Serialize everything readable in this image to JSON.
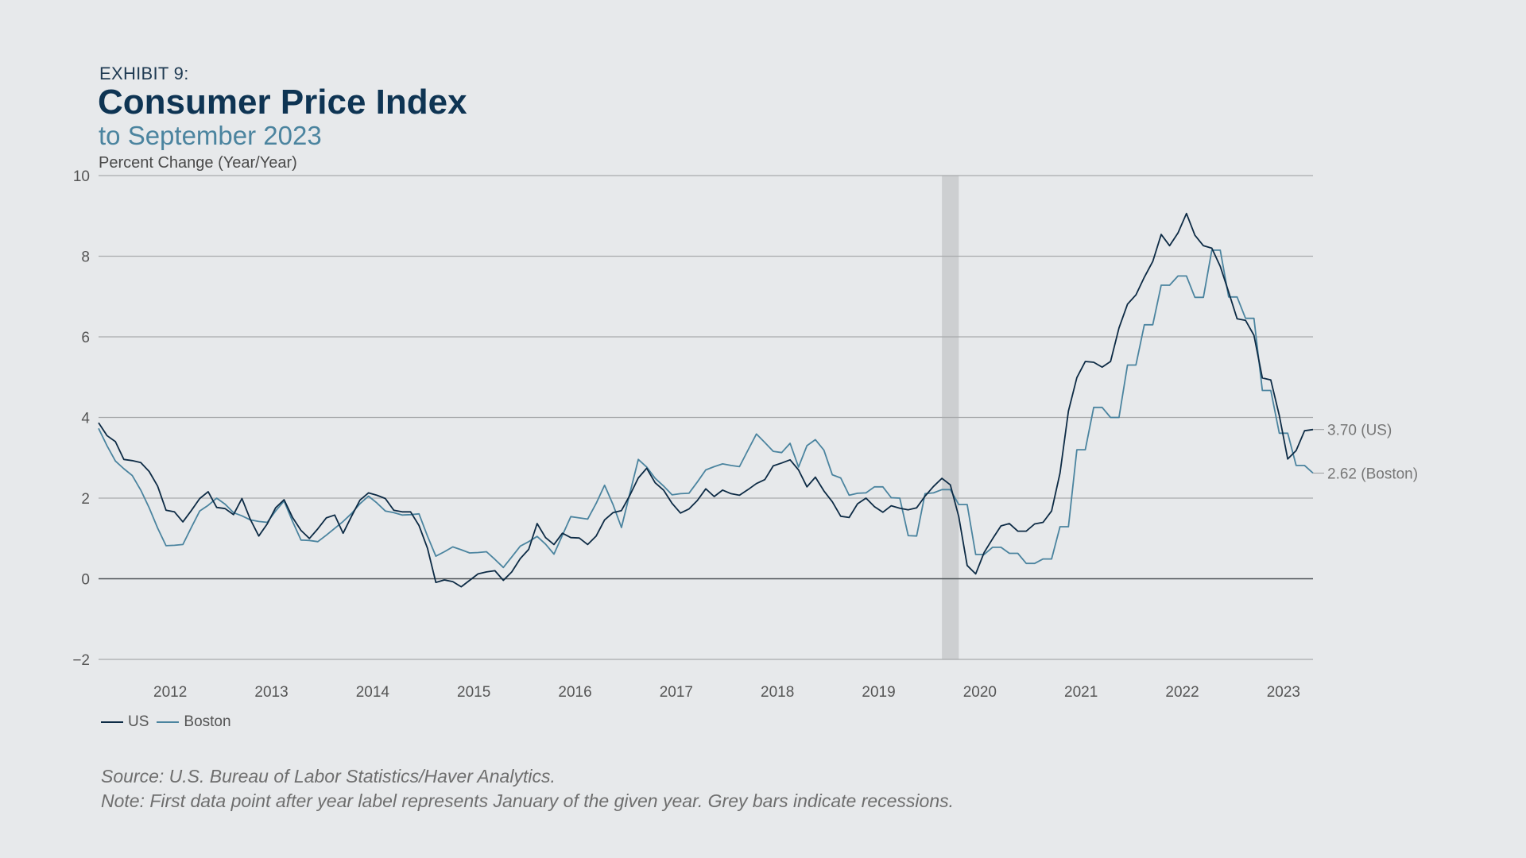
{
  "header": {
    "exhibit": "EXHIBIT 9:",
    "title": "Consumer Price Index",
    "subtitle": "to September 2023"
  },
  "chart_data": {
    "type": "line",
    "ylabel": "Percent Change (Year/Year)",
    "ylim": [
      -2,
      10
    ],
    "yticks": [
      -2,
      0,
      2,
      4,
      6,
      8,
      10
    ],
    "ytick_labels": [
      "−2",
      "0",
      "2",
      "4",
      "6",
      "8",
      "10"
    ],
    "x_axis": "monthly, October 2011 to September 2023",
    "xtick_labels": [
      "2012",
      "2013",
      "2014",
      "2015",
      "2016",
      "2017",
      "2018",
      "2019",
      "2020",
      "2021",
      "2022",
      "2023"
    ],
    "grid": true,
    "legend_position": "bottom-left",
    "recessions": [
      {
        "start": "2020-02",
        "end": "2020-04"
      }
    ],
    "series": [
      {
        "name": "US",
        "color": "#0d2b45",
        "end_label": "3.70 (US)",
        "x_start": "2011-10",
        "frequency": "monthly",
        "values": [
          3.87,
          3.55,
          3.4,
          2.96,
          2.93,
          2.88,
          2.66,
          2.3,
          1.7,
          1.66,
          1.41,
          1.69,
          1.99,
          2.16,
          1.77,
          1.74,
          1.59,
          1.99,
          1.47,
          1.06,
          1.36,
          1.76,
          1.96,
          1.52,
          1.2,
          1.0,
          1.24,
          1.51,
          1.58,
          1.13,
          1.55,
          1.95,
          2.13,
          2.07,
          1.99,
          1.7,
          1.66,
          1.66,
          1.32,
          0.76,
          -0.09,
          -0.03,
          -0.07,
          -0.2,
          -0.04,
          0.12,
          0.17,
          0.2,
          -0.04,
          0.17,
          0.5,
          0.73,
          1.37,
          1.02,
          0.85,
          1.13,
          1.02,
          1.01,
          0.85,
          1.06,
          1.46,
          1.64,
          1.69,
          2.07,
          2.5,
          2.74,
          2.38,
          2.2,
          1.87,
          1.63,
          1.73,
          1.94,
          2.23,
          2.04,
          2.2,
          2.11,
          2.07,
          2.21,
          2.36,
          2.46,
          2.8,
          2.87,
          2.95,
          2.7,
          2.28,
          2.52,
          2.18,
          1.91,
          1.55,
          1.52,
          1.86,
          2.0,
          1.79,
          1.65,
          1.81,
          1.75,
          1.71,
          1.76,
          2.05,
          2.29,
          2.49,
          2.33,
          1.54,
          0.33,
          0.12,
          0.65,
          0.99,
          1.31,
          1.37,
          1.18,
          1.18,
          1.36,
          1.4,
          1.68,
          2.62,
          4.16,
          4.99,
          5.39,
          5.37,
          5.25,
          5.39,
          6.22,
          6.81,
          7.04,
          7.48,
          7.87,
          8.54,
          8.26,
          8.58,
          9.06,
          8.52,
          8.26,
          8.2,
          7.75,
          7.11,
          6.45,
          6.41,
          6.04,
          4.98,
          4.93,
          4.05,
          2.97,
          3.18,
          3.67,
          3.7
        ]
      },
      {
        "name": "Boston",
        "color": "#4b849f",
        "end_label": "2.62 (Boston)",
        "x_start": "2011-10",
        "frequency": "monthly",
        "values": [
          3.73,
          3.3,
          2.92,
          2.73,
          2.56,
          2.2,
          1.76,
          1.26,
          0.82,
          0.83,
          0.85,
          1.27,
          1.68,
          1.82,
          2.0,
          1.85,
          1.64,
          1.56,
          1.46,
          1.42,
          1.4,
          1.68,
          1.93,
          1.42,
          0.96,
          0.95,
          0.92,
          1.08,
          1.25,
          1.42,
          1.62,
          1.86,
          2.05,
          1.88,
          1.68,
          1.64,
          1.58,
          1.59,
          1.61,
          1.06,
          0.56,
          0.67,
          0.79,
          0.72,
          0.64,
          0.65,
          0.67,
          0.48,
          0.28,
          0.54,
          0.81,
          0.92,
          1.05,
          0.86,
          0.61,
          1.08,
          1.54,
          1.51,
          1.48,
          1.87,
          2.32,
          1.84,
          1.27,
          2.12,
          2.96,
          2.77,
          2.49,
          2.3,
          2.08,
          2.11,
          2.12,
          2.4,
          2.7,
          2.78,
          2.85,
          2.81,
          2.78,
          3.19,
          3.59,
          3.38,
          3.16,
          3.13,
          3.36,
          2.77,
          3.3,
          3.45,
          3.19,
          2.58,
          2.5,
          2.07,
          2.12,
          2.13,
          2.28,
          2.28,
          2.01,
          2.0,
          1.07,
          1.06,
          2.11,
          2.13,
          2.21,
          2.21,
          1.84,
          1.84,
          0.6,
          0.6,
          0.78,
          0.78,
          0.63,
          0.63,
          0.38,
          0.38,
          0.49,
          0.49,
          1.29,
          1.29,
          3.2,
          3.2,
          4.25,
          4.25,
          4.0,
          4.0,
          5.3,
          5.3,
          6.3,
          6.3,
          7.28,
          7.28,
          7.51,
          7.51,
          6.98,
          6.98,
          8.15,
          8.15,
          6.99,
          6.99,
          6.46,
          6.46,
          4.67,
          4.67,
          3.61,
          3.61,
          2.81,
          2.81,
          2.62
        ]
      }
    ]
  },
  "footer": {
    "source": "Source: U.S. Bureau of Labor Statistics/Haver Analytics.",
    "note": "Note: First data point after year label represents January of the given year. Grey bars indicate recessions."
  }
}
